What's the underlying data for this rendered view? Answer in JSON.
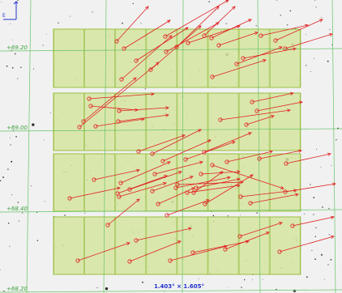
{
  "sky_view": {
    "dec_labels": [
      "+69.20",
      "+69.00",
      "+68.40",
      "+68.20"
    ],
    "field_of_view": "1.403° × 1.605°",
    "compass": {
      "north": "N",
      "east": "E"
    },
    "colors": {
      "background": "#f1f1f1",
      "grid": "#66c466",
      "footprint_fill": "#d6e5a0",
      "footprint_edge": "#98c040",
      "vector": "#e02020",
      "fov_text": "#2233cc",
      "compass": "#2233cc"
    }
  }
}
